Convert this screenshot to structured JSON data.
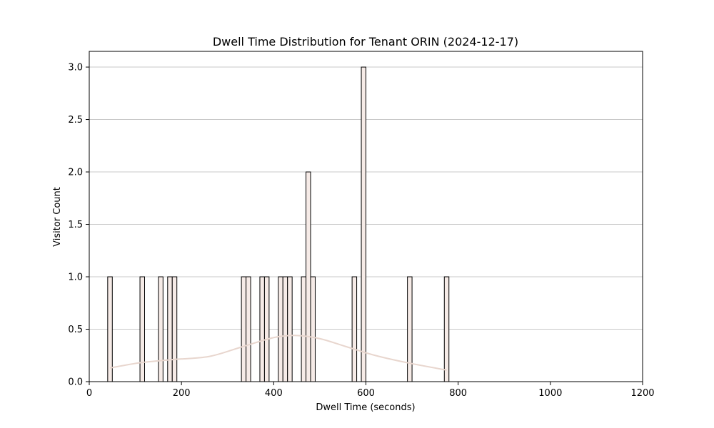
{
  "chart_data": {
    "type": "bar",
    "title": "Dwell Time Distribution for Tenant ORIN (2024-12-17)",
    "xlabel": "Dwell Time (seconds)",
    "ylabel": "Visitor Count",
    "xlim": [
      0,
      1200
    ],
    "ylim": [
      0,
      3.15
    ],
    "grid": "y",
    "bin_width": 10,
    "bars": [
      {
        "x": 40,
        "value": 1
      },
      {
        "x": 110,
        "value": 1
      },
      {
        "x": 150,
        "value": 1
      },
      {
        "x": 170,
        "value": 1
      },
      {
        "x": 180,
        "value": 1
      },
      {
        "x": 330,
        "value": 1
      },
      {
        "x": 340,
        "value": 1
      },
      {
        "x": 370,
        "value": 1
      },
      {
        "x": 380,
        "value": 1
      },
      {
        "x": 410,
        "value": 1
      },
      {
        "x": 420,
        "value": 1
      },
      {
        "x": 430,
        "value": 1
      },
      {
        "x": 460,
        "value": 1
      },
      {
        "x": 470,
        "value": 2
      },
      {
        "x": 480,
        "value": 1
      },
      {
        "x": 570,
        "value": 1
      },
      {
        "x": 590,
        "value": 3
      },
      {
        "x": 690,
        "value": 1
      },
      {
        "x": 770,
        "value": 1
      }
    ],
    "kde_curve": {
      "x": [
        45,
        110,
        180,
        260,
        330,
        400,
        450,
        500,
        560,
        620,
        690,
        775
      ],
      "y": [
        0.13,
        0.18,
        0.21,
        0.24,
        0.33,
        0.42,
        0.44,
        0.41,
        0.33,
        0.25,
        0.18,
        0.11
      ]
    },
    "x_ticks": [
      "0",
      "200",
      "400",
      "600",
      "800",
      "1000",
      "1200"
    ],
    "x_tick_values": [
      0,
      200,
      400,
      600,
      800,
      1000,
      1200
    ],
    "y_ticks": [
      "0.0",
      "0.5",
      "1.0",
      "1.5",
      "2.0",
      "2.5",
      "3.0"
    ],
    "y_tick_values": [
      0,
      0.5,
      1.0,
      1.5,
      2.0,
      2.5,
      3.0
    ],
    "colors": {
      "bar_fill": "#f6ebe7",
      "bar_edge": "#000000",
      "kde_line": "#e8d6ce",
      "grid": "#c8c8c8"
    }
  }
}
